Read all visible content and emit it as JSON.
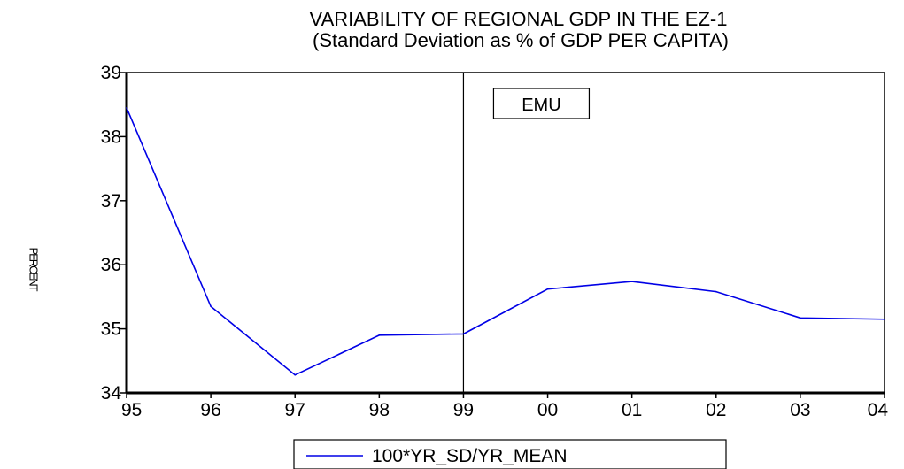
{
  "chart_data": {
    "type": "line",
    "title": "VARIABILITY OF REGIONAL GDP IN THE EZ-1",
    "subtitle": "(Standard Deviation as % of GDP PER CAPITA)",
    "ylabel": "PERCENT",
    "xlabel": "",
    "categories": [
      "95",
      "96",
      "97",
      "98",
      "99",
      "00",
      "01",
      "02",
      "03",
      "04"
    ],
    "series": [
      {
        "name": "100*YR_SD/YR_MEAN",
        "values": [
          38.45,
          35.35,
          34.28,
          34.9,
          34.92,
          35.62,
          35.74,
          35.58,
          35.17,
          35.15
        ]
      }
    ],
    "ylim": [
      34,
      39
    ],
    "yticks": [
      34,
      35,
      36,
      37,
      38,
      39
    ],
    "annotations": [
      {
        "text": "EMU",
        "at_category": "99"
      }
    ],
    "series_color": "#0000e6",
    "grid": false,
    "legend_position": "bottom"
  }
}
